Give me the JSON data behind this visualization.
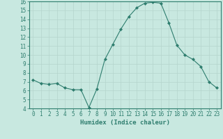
{
  "x": [
    0,
    1,
    2,
    3,
    4,
    5,
    6,
    7,
    8,
    9,
    10,
    11,
    12,
    13,
    14,
    15,
    16,
    17,
    18,
    19,
    20,
    21,
    22,
    23
  ],
  "y": [
    7.2,
    6.8,
    6.7,
    6.8,
    6.3,
    6.1,
    6.1,
    4.1,
    6.2,
    9.5,
    11.2,
    12.9,
    14.3,
    15.3,
    15.8,
    15.9,
    15.8,
    13.6,
    11.1,
    10.0,
    9.5,
    8.7,
    7.0,
    6.3
  ],
  "line_color": "#2e7d6e",
  "marker": "D",
  "marker_size": 2,
  "bg_color": "#c8e8e0",
  "grid_color": "#b5d5cc",
  "xlabel": "Humidex (Indice chaleur)",
  "ylim": [
    4,
    16
  ],
  "xlim": [
    -0.5,
    23.5
  ],
  "yticks": [
    4,
    5,
    6,
    7,
    8,
    9,
    10,
    11,
    12,
    13,
    14,
    15,
    16
  ],
  "xticks": [
    0,
    1,
    2,
    3,
    4,
    5,
    6,
    7,
    8,
    9,
    10,
    11,
    12,
    13,
    14,
    15,
    16,
    17,
    18,
    19,
    20,
    21,
    22,
    23
  ],
  "axis_color": "#2e7d6e",
  "tick_color": "#2e7d6e",
  "label_fontsize": 6.5,
  "tick_fontsize": 5.5
}
